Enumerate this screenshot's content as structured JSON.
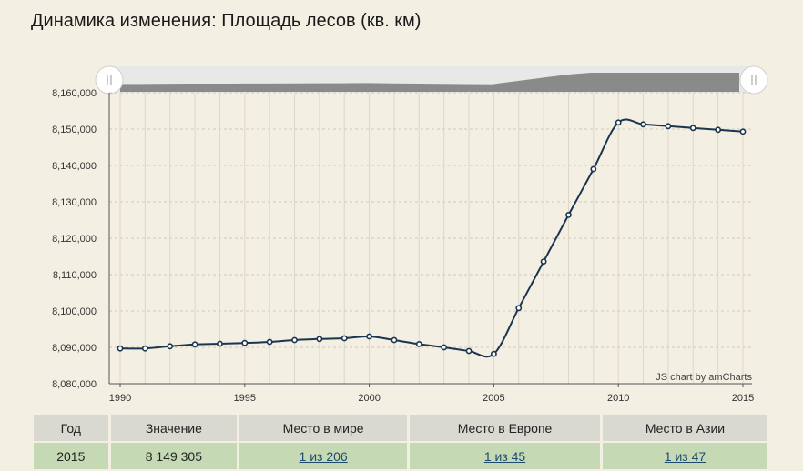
{
  "page": {
    "title": "Динамика изменения: Площадь лесов (кв. км)"
  },
  "chart_data": {
    "type": "line",
    "title": "Динамика изменения: Площадь лесов (кв. км)",
    "x": [
      1990,
      1991,
      1992,
      1993,
      1994,
      1995,
      1996,
      1997,
      1998,
      1999,
      2000,
      2001,
      2002,
      2003,
      2004,
      2005,
      2006,
      2007,
      2008,
      2009,
      2010,
      2011,
      2012,
      2013,
      2014,
      2015
    ],
    "series": [
      {
        "values": [
          8089700,
          8089700,
          8090300,
          8090800,
          8091000,
          8091200,
          8091500,
          8092000,
          8092300,
          8092500,
          8093000,
          8092000,
          8090900,
          8090000,
          8089000,
          8088200,
          8100800,
          8113600,
          8126400,
          8139000,
          8151800,
          8151300,
          8150800,
          8150300,
          8149800,
          8149305
        ]
      }
    ],
    "ylim": [
      8080000,
      8160000
    ],
    "yticks": [
      "8,160,000",
      "8,150,000",
      "8,140,000",
      "8,130,000",
      "8,120,000",
      "8,110,000",
      "8,100,000",
      "8,090,000",
      "8,080,000"
    ],
    "xticks": [
      "1990",
      "1995",
      "2000",
      "2005",
      "2010",
      "2015"
    ],
    "grid": true,
    "line_color": "#1b3550",
    "credit": "JS chart by amCharts"
  },
  "table": {
    "headers": [
      "Год",
      "Значение",
      "Место в мире",
      "Место в Европе",
      "Место в Азии"
    ],
    "row": {
      "year": "2015",
      "value": "8 149 305",
      "world": "1 из 206",
      "europe": "1 из 45",
      "asia": "1 из 47"
    }
  }
}
